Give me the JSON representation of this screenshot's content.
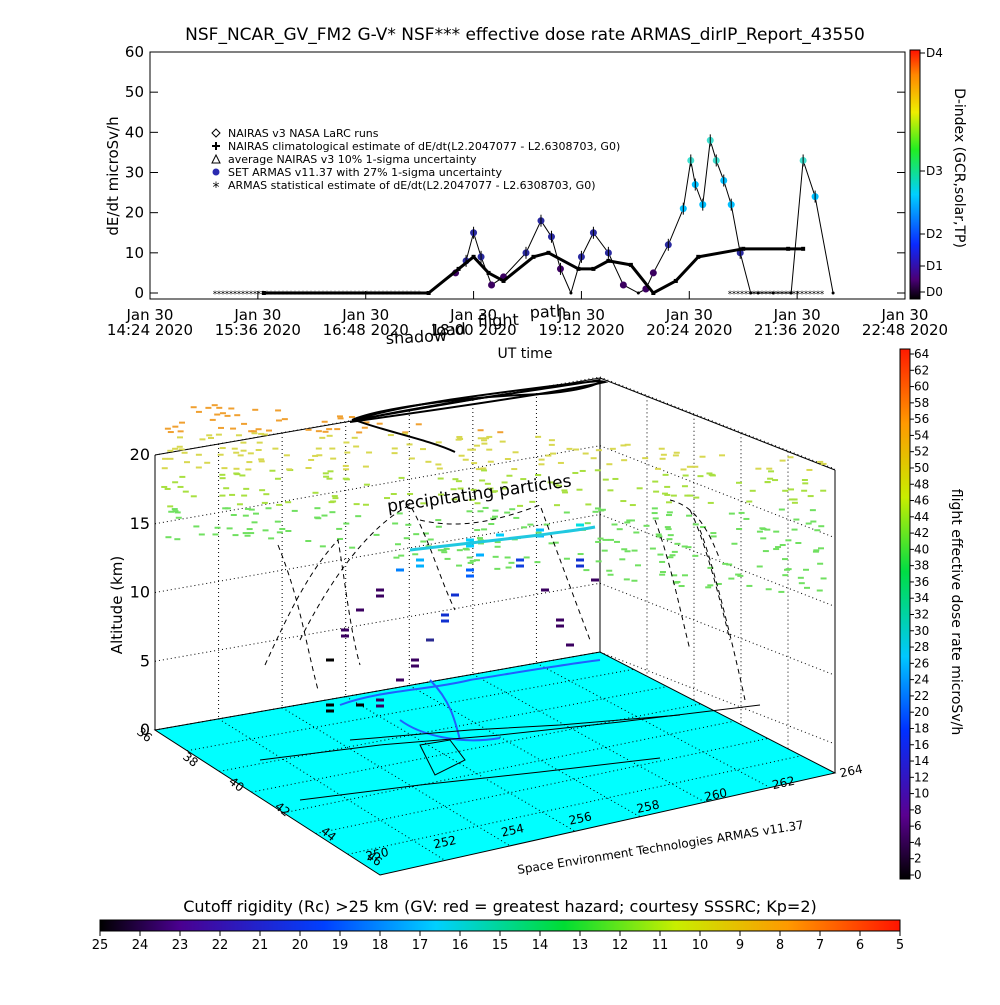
{
  "top_chart": {
    "title": "NSF_NCAR_GV_FM2 G-V* NSF*** effective dose rate ARMAS_dirIP_Report_43550",
    "ylabel": "dE/dt microSv/h",
    "xlabel": "UT time",
    "yticks": [
      "0",
      "10",
      "20",
      "30",
      "40",
      "50",
      "60"
    ],
    "xticks": [
      {
        "line1": "Jan 30",
        "line2": "14:24 2020"
      },
      {
        "line1": "Jan 30",
        "line2": "15:36 2020"
      },
      {
        "line1": "Jan 30",
        "line2": "16:48 2020"
      },
      {
        "line1": "Jan 30",
        "line2": "18:00 2020"
      },
      {
        "line1": "Jan 30",
        "line2": "19:12 2020"
      },
      {
        "line1": "Jan 30",
        "line2": "20:24 2020"
      },
      {
        "line1": "Jan 30",
        "line2": "21:36 2020"
      },
      {
        "line1": "Jan 30",
        "line2": "22:48 2020"
      }
    ],
    "legend": [
      {
        "symbol": "diamond",
        "label": "NAIRAS v3 NASA LaRC runs"
      },
      {
        "symbol": "plus",
        "label": "NAIRAS climatological estimate of dE/dt(L2.2047077 - L2.6308703, G0)"
      },
      {
        "symbol": "triangle",
        "label": "average NAIRAS v3 10% 1-sigma uncertainty"
      },
      {
        "symbol": "dot",
        "label": "SET ARMAS v11.37 with 27% 1-sigma uncertainty"
      },
      {
        "symbol": "star",
        "label": "ARMAS statistical estimate of dE/dt(L2.2047077 - L2.6308703, G0)"
      }
    ],
    "dindex": {
      "title": "D-index (GCR,solar,TP)",
      "ticks": [
        "D4",
        "D3",
        "D2",
        "D1",
        "D0"
      ]
    },
    "overlay_labels": [
      "shadow",
      "load",
      "flight",
      "path"
    ]
  },
  "chart_data": [
    {
      "type": "line",
      "title": "NSF_NCAR_GV_FM2 G-V* NSF*** effective dose rate ARMAS_dirIP_Report_43550",
      "xlabel": "UT time",
      "ylabel": "dE/dt microSv/h",
      "xlim": [
        "2020-01-30 14:24",
        "2020-01-30 22:48"
      ],
      "ylim": [
        0,
        60
      ],
      "series": [
        {
          "name": "SET ARMAS v11.37 with 27% 1-sigma uncertainty",
          "x": [
            "15:40",
            "16:30",
            "17:30",
            "17:48",
            "17:55",
            "18:00",
            "18:05",
            "18:12",
            "18:20",
            "18:35",
            "18:45",
            "18:52",
            "18:58",
            "19:05",
            "19:12",
            "19:20",
            "19:30",
            "19:40",
            "19:50",
            "19:55",
            "20:00",
            "20:10",
            "20:20",
            "20:25",
            "20:28",
            "20:33",
            "20:38",
            "20:42",
            "20:47",
            "20:52",
            "20:58",
            "21:05",
            "21:10",
            "21:20",
            "21:32",
            "21:40",
            "21:48",
            "22:00"
          ],
          "values": [
            0,
            0,
            0,
            5,
            8,
            15,
            9,
            2,
            4,
            10,
            18,
            14,
            6,
            0,
            9,
            15,
            10,
            2,
            0,
            1,
            5,
            12,
            21,
            33,
            27,
            22,
            38,
            33,
            28,
            22,
            10,
            0,
            0,
            0,
            0,
            33,
            24,
            0
          ]
        },
        {
          "name": "ARMAS statistical estimate of dE/dt(L2.2047077 - L2.6308703, G0)",
          "x": [
            "15:40",
            "17:30",
            "17:50",
            "18:00",
            "18:10",
            "18:20",
            "18:40",
            "18:50",
            "19:10",
            "19:20",
            "19:30",
            "19:45",
            "20:00",
            "20:15",
            "20:30",
            "21:00",
            "21:30",
            "21:40"
          ],
          "values": [
            0,
            0,
            6,
            9,
            5,
            3,
            9,
            10,
            6,
            6,
            8,
            7,
            0,
            3,
            9,
            11,
            11,
            11
          ]
        }
      ]
    },
    {
      "type": "scatter",
      "title": "",
      "xlabel": "",
      "ylabel": "Altitude (km)",
      "zlabel": "flight effective dose rate microSv/h",
      "x_ticks": [
        "250",
        "252",
        "254",
        "256",
        "258",
        "260",
        "262",
        "264"
      ],
      "y_ticks": [
        "36",
        "38",
        "40",
        "42",
        "44",
        "46"
      ],
      "z_ticks": [
        "0",
        "5",
        "10",
        "15",
        "20"
      ],
      "zlim": [
        0,
        20
      ]
    }
  ],
  "globe": {
    "ylabel": "Altitude (km)",
    "zticks": [
      "0",
      "5",
      "10",
      "15",
      "20"
    ],
    "lat_ticks": [
      "36",
      "38",
      "40",
      "42",
      "44",
      "46"
    ],
    "lon_ticks": [
      "250",
      "252",
      "254",
      "256",
      "258",
      "260",
      "262",
      "264"
    ],
    "annotation": "precipitating particles",
    "credit": "Space Environment Technologies ARMAS v11.37",
    "colorbar_title": "flight effective dose rate microSv/h",
    "colorbar_ticks": [
      "0",
      "2",
      "4",
      "6",
      "8",
      "10",
      "12",
      "14",
      "16",
      "18",
      "20",
      "22",
      "24",
      "26",
      "28",
      "30",
      "32",
      "34",
      "36",
      "38",
      "40",
      "42",
      "44",
      "46",
      "48",
      "50",
      "52",
      "54",
      "56",
      "58",
      "60",
      "62",
      "64"
    ],
    "floor_color": "#00ffff"
  },
  "cutoff": {
    "title": "Cutoff rigidity (Rc) >25 km (GV: red = greatest hazard; courtesy SSSRC; Kp=2)",
    "ticks": [
      "25",
      "24",
      "23",
      "22",
      "21",
      "20",
      "19",
      "18",
      "17",
      "16",
      "15",
      "14",
      "13",
      "12",
      "11",
      "10",
      "9",
      "8",
      "7",
      "6",
      "5"
    ]
  }
}
